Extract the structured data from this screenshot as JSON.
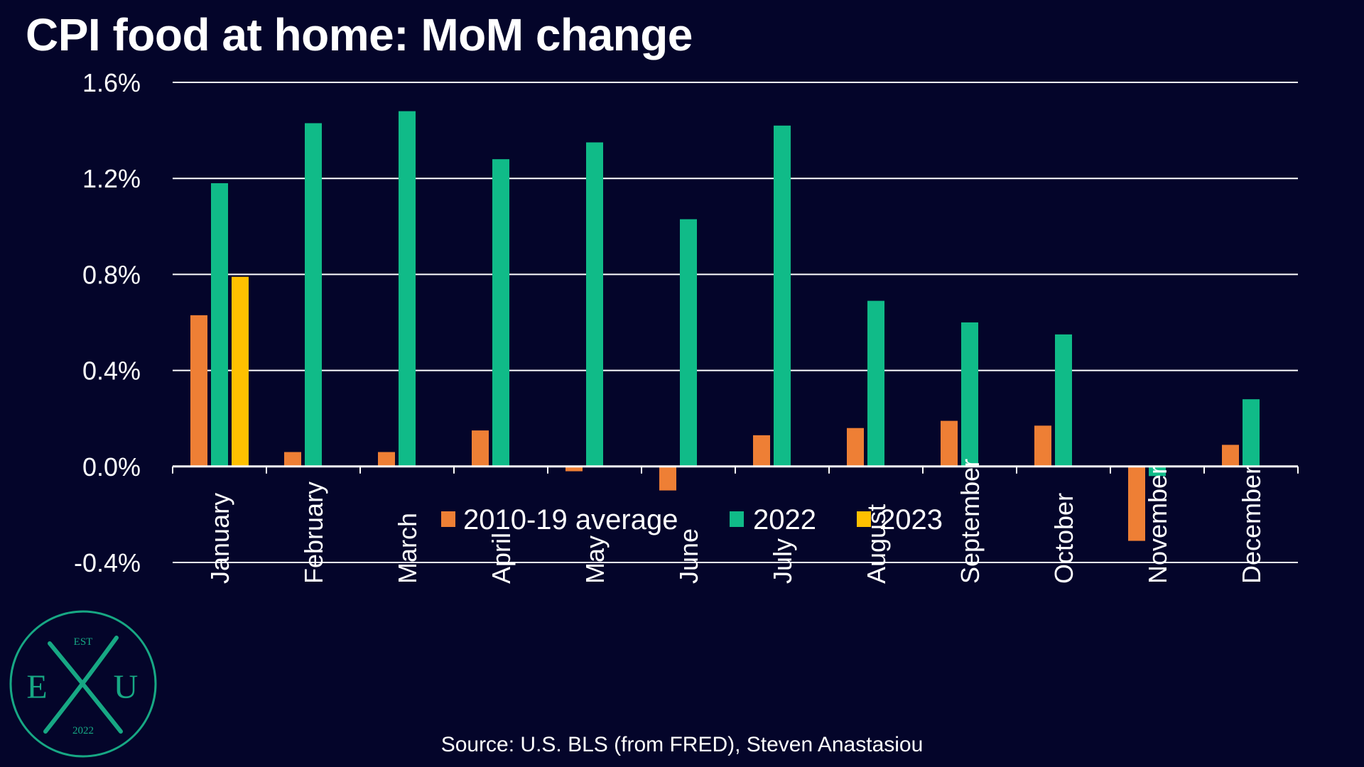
{
  "title": "CPI food at home: MoM change",
  "source": "Source: U.S. BLS (from FRED), Steven Anastasiou",
  "logo": {
    "top_text": "EST",
    "left_letter": "E",
    "center_letter": "X",
    "right_letter": "U",
    "year": "2022",
    "color": "#17a884"
  },
  "colors": {
    "background": "#04052a",
    "grid": "#ffffff",
    "text": "#ffffff"
  },
  "chart_data": {
    "type": "bar",
    "title": "CPI food at home: MoM change",
    "categories": [
      "January",
      "February",
      "March",
      "April",
      "May",
      "June",
      "July",
      "August",
      "September",
      "October",
      "November",
      "December"
    ],
    "series": [
      {
        "name": "2010-19 average",
        "color": "#ee7f35",
        "values": [
          0.63,
          0.06,
          0.06,
          0.15,
          -0.02,
          -0.1,
          0.13,
          0.16,
          0.19,
          0.17,
          -0.31,
          0.09
        ]
      },
      {
        "name": "2022",
        "color": "#10bb88",
        "values": [
          1.18,
          1.43,
          1.48,
          1.28,
          1.35,
          1.03,
          1.42,
          0.69,
          0.6,
          0.55,
          -0.04,
          0.28
        ]
      },
      {
        "name": "2023",
        "color": "#ffc000",
        "values": [
          0.79,
          null,
          null,
          null,
          null,
          null,
          null,
          null,
          null,
          null,
          null,
          null
        ]
      }
    ],
    "y_ticks": [
      "1.6%",
      "1.2%",
      "0.8%",
      "0.4%",
      "0.0%",
      "-0.4%"
    ],
    "ylim": [
      -0.4,
      1.6
    ],
    "grid": true,
    "legend_position": "bottom-center, inside plot below zero line"
  }
}
